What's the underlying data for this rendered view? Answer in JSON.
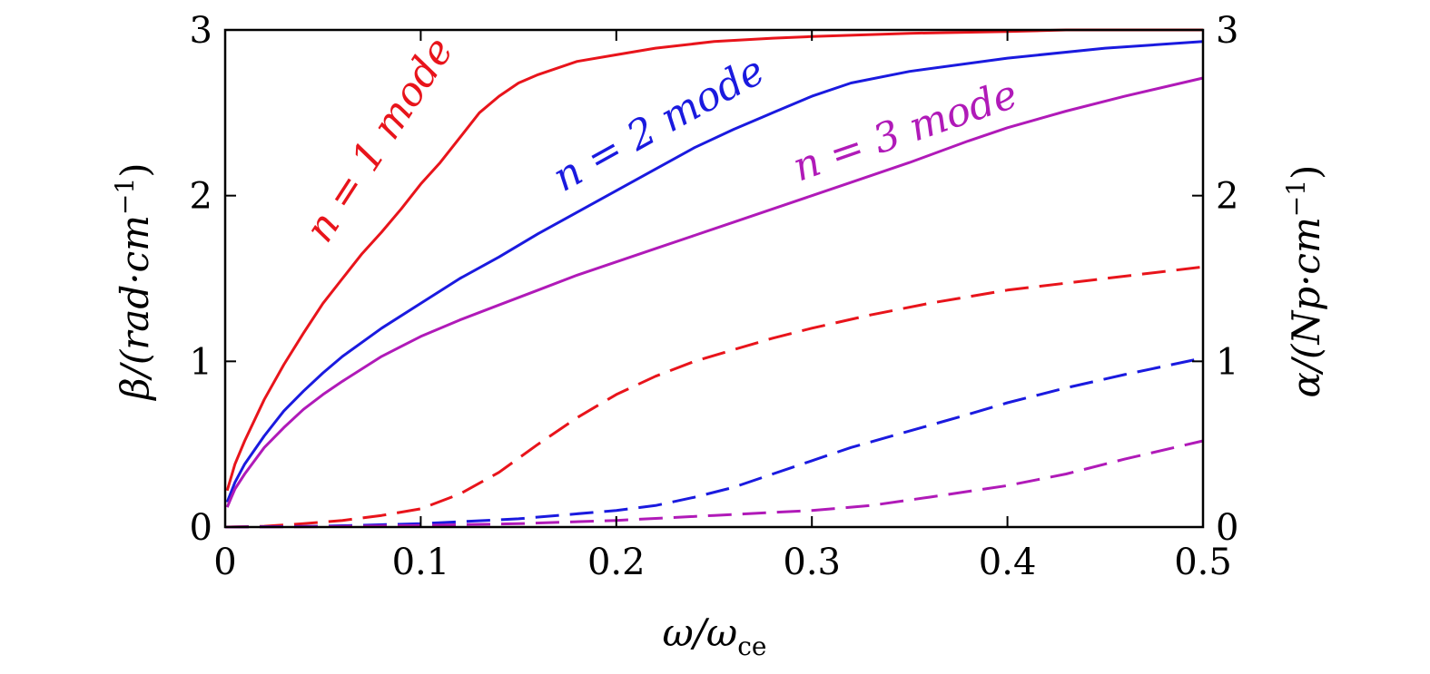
{
  "chart_data": {
    "type": "line",
    "xlabel": "ω/ω",
    "xlabel_sub": "ce",
    "ylabel_left": "β/(rad·cm",
    "ylabel_left_sup": "−1",
    "ylabel_left_close": ")",
    "ylabel_right": "α/(Np·cm",
    "ylabel_right_sup": "−1",
    "ylabel_right_close": ")",
    "xlim": [
      0,
      0.5
    ],
    "ylim_left": [
      0,
      3
    ],
    "ylim_right": [
      0,
      3
    ],
    "x_ticks": [
      0,
      0.1,
      0.2,
      0.3,
      0.4,
      0.5
    ],
    "x_tick_labels": [
      "0",
      "0.1",
      "0.2",
      "0.3",
      "0.4",
      "0.5"
    ],
    "y_ticks": [
      0,
      1,
      2,
      3
    ],
    "y_tick_labels": [
      "0",
      "1",
      "2",
      "3"
    ],
    "grid": false,
    "mode_labels": [
      {
        "text": "n = 1 mode",
        "color": "#e8141b"
      },
      {
        "text": "n = 2 mode",
        "color": "#1a1adf"
      },
      {
        "text": "n = 3 mode",
        "color": "#b01ab8"
      }
    ],
    "series": [
      {
        "mode": "n = 1",
        "quantity": "β",
        "axis": "left",
        "style": "solid",
        "color": "#e8141b",
        "x": [
          0.001,
          0.005,
          0.01,
          0.02,
          0.03,
          0.04,
          0.05,
          0.06,
          0.07,
          0.08,
          0.09,
          0.1,
          0.11,
          0.12,
          0.13,
          0.14,
          0.15,
          0.16,
          0.18,
          0.2,
          0.22,
          0.25,
          0.28,
          0.3,
          0.35,
          0.4,
          0.43,
          0.5
        ],
        "y": [
          0.22,
          0.38,
          0.52,
          0.77,
          0.98,
          1.17,
          1.35,
          1.5,
          1.65,
          1.78,
          1.92,
          2.07,
          2.2,
          2.35,
          2.5,
          2.6,
          2.68,
          2.73,
          2.81,
          2.85,
          2.89,
          2.93,
          2.95,
          2.96,
          2.98,
          2.99,
          3.0,
          3.0
        ]
      },
      {
        "mode": "n = 2",
        "quantity": "β",
        "axis": "left",
        "style": "solid",
        "color": "#1a1adf",
        "x": [
          0.001,
          0.005,
          0.01,
          0.02,
          0.03,
          0.04,
          0.05,
          0.06,
          0.08,
          0.1,
          0.12,
          0.14,
          0.16,
          0.18,
          0.2,
          0.22,
          0.24,
          0.26,
          0.28,
          0.3,
          0.32,
          0.35,
          0.4,
          0.45,
          0.5
        ],
        "y": [
          0.15,
          0.27,
          0.38,
          0.55,
          0.7,
          0.82,
          0.93,
          1.03,
          1.2,
          1.35,
          1.5,
          1.63,
          1.77,
          1.9,
          2.03,
          2.16,
          2.29,
          2.4,
          2.5,
          2.6,
          2.68,
          2.75,
          2.83,
          2.89,
          2.93
        ]
      },
      {
        "mode": "n = 3",
        "quantity": "β",
        "axis": "left",
        "style": "solid",
        "color": "#b01ab8",
        "x": [
          0.001,
          0.005,
          0.01,
          0.02,
          0.03,
          0.04,
          0.05,
          0.06,
          0.08,
          0.1,
          0.12,
          0.14,
          0.16,
          0.18,
          0.2,
          0.22,
          0.24,
          0.26,
          0.28,
          0.3,
          0.32,
          0.35,
          0.38,
          0.4,
          0.43,
          0.46,
          0.5
        ],
        "y": [
          0.12,
          0.23,
          0.32,
          0.48,
          0.6,
          0.71,
          0.8,
          0.88,
          1.03,
          1.15,
          1.25,
          1.34,
          1.43,
          1.52,
          1.6,
          1.68,
          1.76,
          1.84,
          1.92,
          2.0,
          2.08,
          2.2,
          2.33,
          2.41,
          2.51,
          2.6,
          2.71
        ]
      },
      {
        "mode": "n = 1",
        "quantity": "α",
        "axis": "right",
        "style": "dashed",
        "color": "#e8141b",
        "x": [
          0,
          0.02,
          0.04,
          0.06,
          0.08,
          0.1,
          0.12,
          0.14,
          0.16,
          0.18,
          0.2,
          0.22,
          0.24,
          0.26,
          0.28,
          0.3,
          0.33,
          0.36,
          0.4,
          0.45,
          0.5
        ],
        "y": [
          0.0,
          0.005,
          0.02,
          0.04,
          0.07,
          0.11,
          0.2,
          0.33,
          0.5,
          0.66,
          0.8,
          0.91,
          1.0,
          1.07,
          1.14,
          1.2,
          1.28,
          1.35,
          1.43,
          1.5,
          1.57
        ]
      },
      {
        "mode": "n = 2",
        "quantity": "α",
        "axis": "right",
        "style": "dashed",
        "color": "#1a1adf",
        "x": [
          0,
          0.05,
          0.1,
          0.15,
          0.2,
          0.22,
          0.24,
          0.26,
          0.28,
          0.3,
          0.32,
          0.35,
          0.38,
          0.4,
          0.43,
          0.46,
          0.5
        ],
        "y": [
          0.0,
          0.005,
          0.02,
          0.05,
          0.1,
          0.13,
          0.18,
          0.24,
          0.32,
          0.4,
          0.48,
          0.58,
          0.68,
          0.75,
          0.84,
          0.92,
          1.02
        ]
      },
      {
        "mode": "n = 3",
        "quantity": "α",
        "axis": "right",
        "style": "dashed",
        "color": "#b01ab8",
        "x": [
          0,
          0.05,
          0.1,
          0.15,
          0.2,
          0.25,
          0.3,
          0.33,
          0.36,
          0.4,
          0.43,
          0.46,
          0.5
        ],
        "y": [
          0.0,
          0.002,
          0.01,
          0.02,
          0.04,
          0.07,
          0.1,
          0.13,
          0.18,
          0.25,
          0.32,
          0.41,
          0.52
        ]
      }
    ]
  }
}
